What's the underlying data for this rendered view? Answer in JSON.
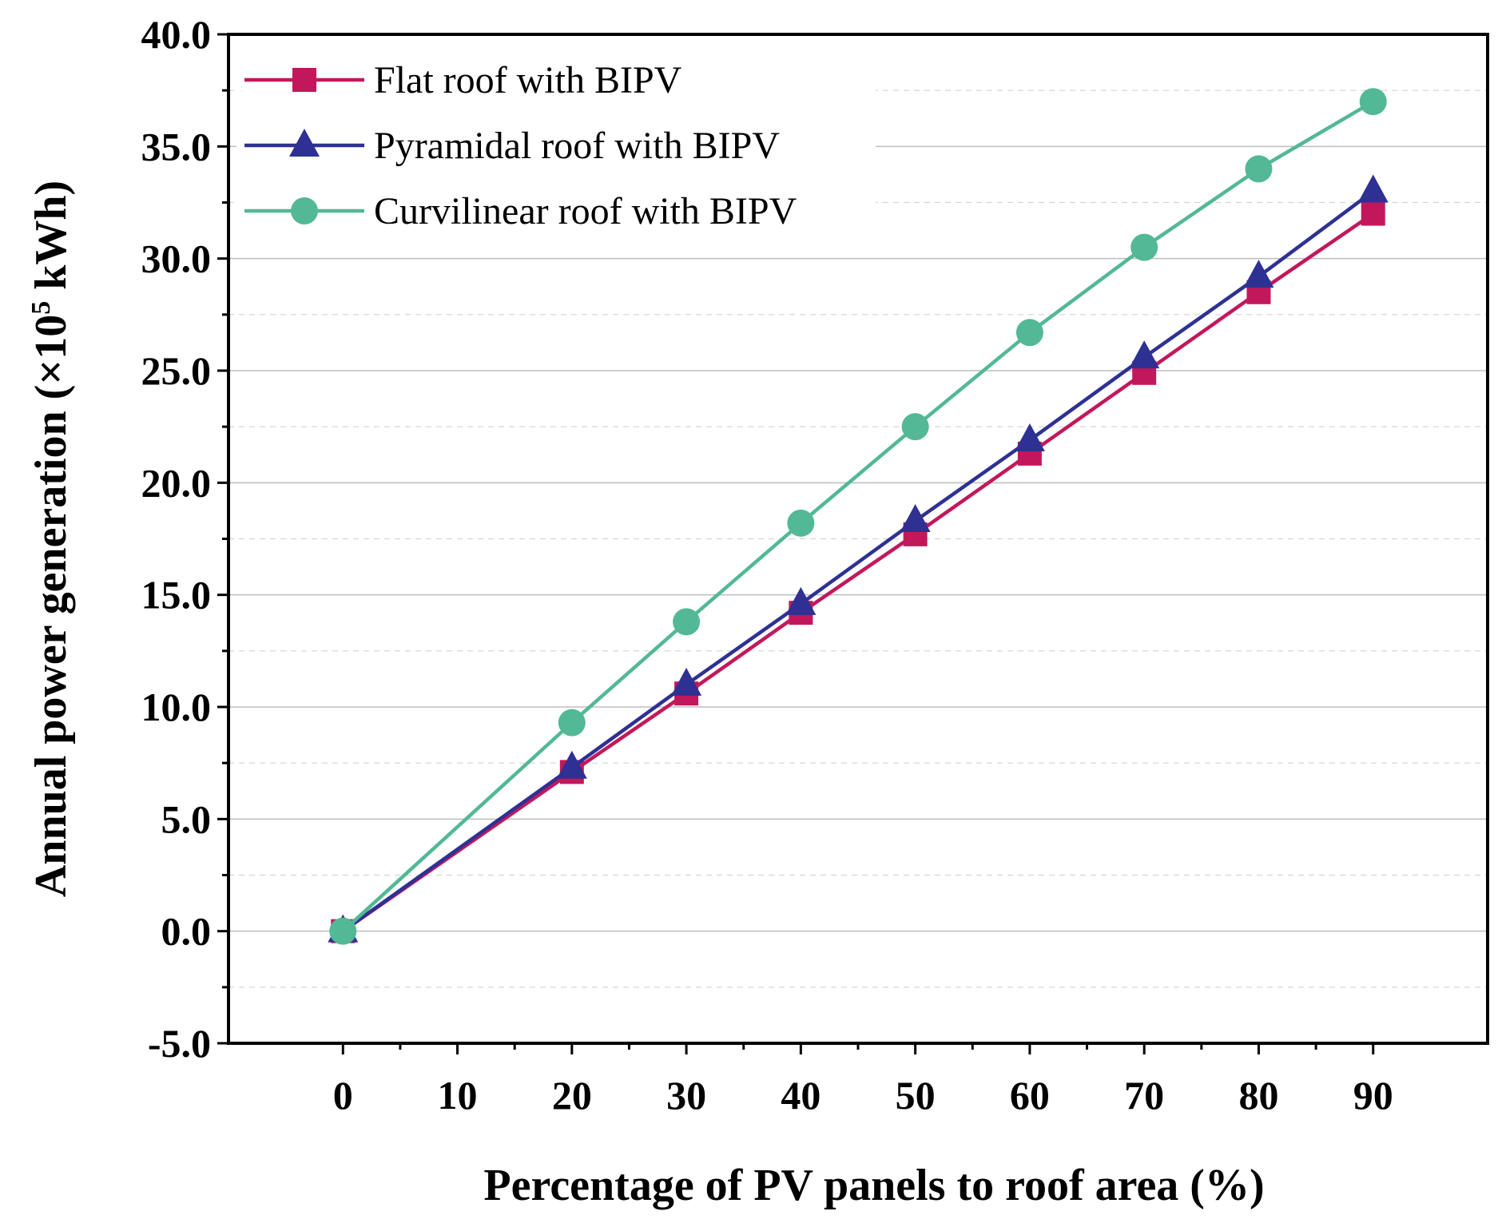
{
  "chart_data": {
    "type": "line",
    "title": "",
    "xlabel": "Percentage of PV panels to roof area (%)",
    "ylabel_main": "Annual power generation (×10",
    "ylabel_sup": "5",
    "ylabel_tail": " kWh)",
    "x": [
      0,
      20,
      30,
      40,
      50,
      60,
      70,
      80,
      90
    ],
    "xticks": [
      "0",
      "10",
      "20",
      "30",
      "40",
      "50",
      "60",
      "70",
      "80",
      "90"
    ],
    "xlim": [
      -10,
      100
    ],
    "ylim": [
      -5,
      40
    ],
    "yticks": [
      "-5.0",
      "0.0",
      "5.0",
      "10.0",
      "15.0",
      "20.0",
      "25.0",
      "30.0",
      "35.0",
      "40.0"
    ],
    "grid": true,
    "legend_position": "top-left",
    "series": [
      {
        "name": "Flat roof with BIPV",
        "marker": "square",
        "color": "#C2185B",
        "values": [
          0,
          7.1,
          10.6,
          14.2,
          17.7,
          21.3,
          24.9,
          28.5,
          32.0
        ]
      },
      {
        "name": "Pyramidal roof with BIPV",
        "marker": "triangle",
        "color": "#2E3192",
        "values": [
          0,
          7.3,
          11.0,
          14.6,
          18.3,
          21.9,
          25.6,
          29.2,
          33.0
        ]
      },
      {
        "name": "Curvilinear roof with BIPV",
        "marker": "circle",
        "color": "#52B896",
        "values": [
          0,
          9.3,
          13.8,
          18.2,
          22.5,
          26.7,
          30.5,
          34.0,
          37.0
        ]
      }
    ]
  }
}
